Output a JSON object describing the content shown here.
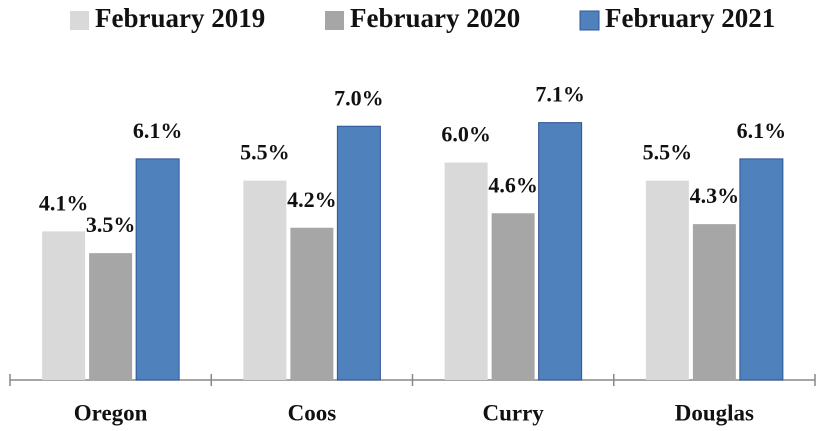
{
  "chart_data": {
    "type": "bar",
    "categories": [
      "Oregon",
      "Coos",
      "Curry",
      "Douglas"
    ],
    "series": [
      {
        "name": "February 2019",
        "color": "#d9d9d9",
        "values": [
          4.1,
          5.5,
          6.0,
          5.5
        ],
        "value_labels": [
          "4.1%",
          "5.5%",
          "6.0%",
          "5.5%"
        ]
      },
      {
        "name": "February 2020",
        "color": "#a6a6a6",
        "values": [
          3.5,
          4.2,
          4.6,
          4.3
        ],
        "value_labels": [
          "3.5%",
          "4.2%",
          "4.6%",
          "4.3%"
        ]
      },
      {
        "name": "February 2021",
        "color": "#4f81bd",
        "values": [
          6.1,
          7.0,
          7.1,
          6.1
        ],
        "value_labels": [
          "6.1%",
          "7.0%",
          "7.1%",
          "6.1%"
        ]
      }
    ],
    "ylim": [
      0,
      8
    ],
    "legend": "top"
  }
}
